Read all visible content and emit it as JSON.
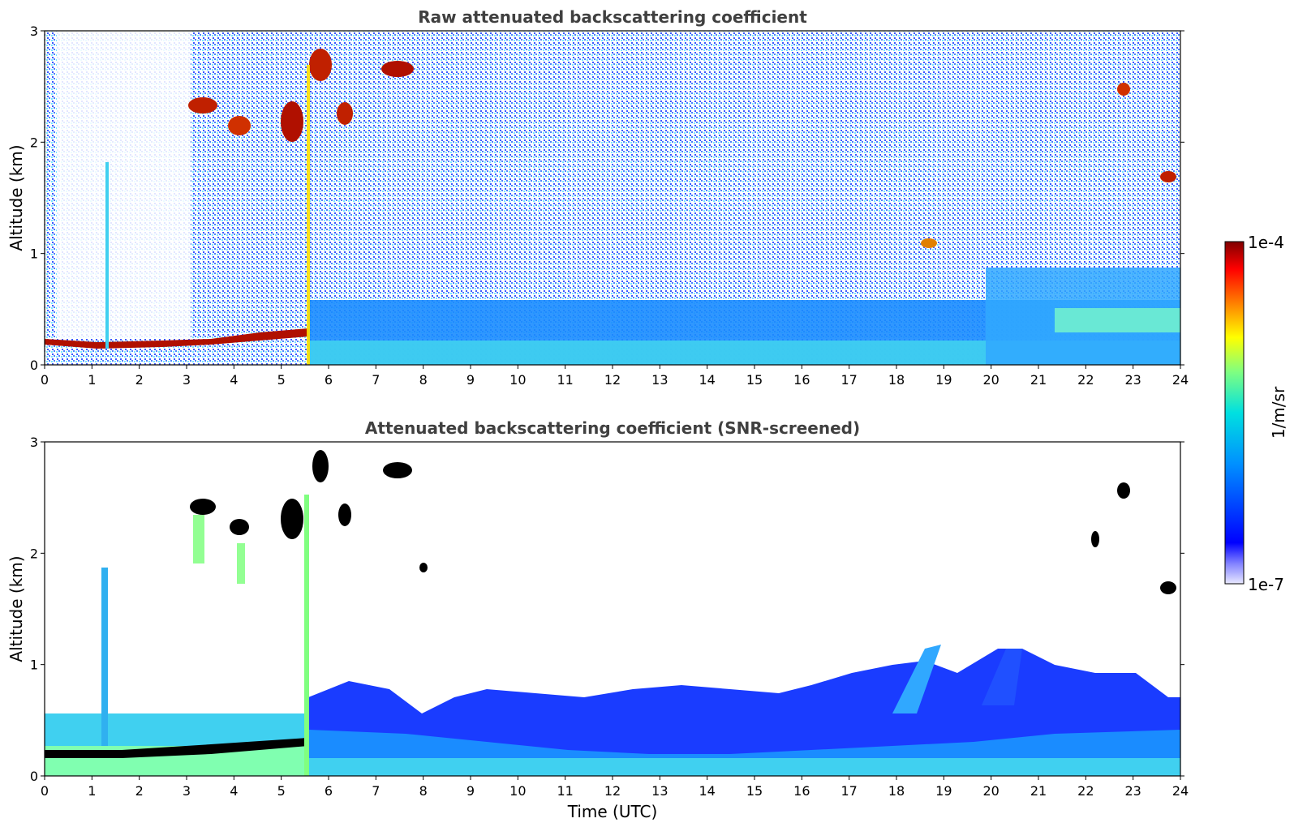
{
  "chart_data": [
    {
      "type": "heatmap",
      "title": "Raw attenuated backscattering coefficient",
      "xlabel": "",
      "ylabel": "Altitude (km)",
      "xlim": [
        0,
        24
      ],
      "ylim": [
        0,
        3
      ],
      "x_ticks": [
        "0",
        "1",
        "2",
        "3",
        "4",
        "5",
        "6",
        "7",
        "8",
        "9",
        "10",
        "11",
        "12",
        "13",
        "14",
        "15",
        "16",
        "17",
        "18",
        "19",
        "20",
        "21",
        "22",
        "23",
        "24"
      ],
      "y_ticks": [
        "0",
        "1",
        "2",
        "3"
      ],
      "features": [
        {
          "label": "boundary layer top (strong)",
          "x": [
            0.0,
            5.4
          ],
          "y_km": [
            0.1,
            0.25
          ],
          "level": "high"
        },
        {
          "label": "aerosol layer",
          "x": [
            5.5,
            24.0
          ],
          "y_km": [
            0.0,
            0.5
          ],
          "level": "medium"
        },
        {
          "label": "elevated aerosol",
          "x": [
            20.0,
            24.0
          ],
          "y_km": [
            0.3,
            0.8
          ],
          "level": "medium"
        },
        {
          "label": "cloud",
          "x": [
            3.0,
            4.5
          ],
          "y_km": [
            2.0,
            2.4
          ],
          "level": "high"
        },
        {
          "label": "cloud",
          "x": [
            5.0,
            6.0
          ],
          "y_km": [
            2.0,
            2.9
          ],
          "level": "high"
        },
        {
          "label": "cloud",
          "x": [
            7.1,
            7.8
          ],
          "y_km": [
            2.6,
            2.8
          ],
          "level": "high"
        },
        {
          "label": "cloud",
          "x": [
            23.0,
            24.0
          ],
          "y_km": [
            1.6,
            2.5
          ],
          "level": "high"
        }
      ]
    },
    {
      "type": "heatmap",
      "title": "Attenuated backscattering coefficient (SNR-screened)",
      "xlabel": "Time (UTC)",
      "ylabel": "Altitude (km)",
      "xlim": [
        0,
        24
      ],
      "ylim": [
        0,
        3
      ],
      "x_ticks": [
        "0",
        "1",
        "2",
        "3",
        "4",
        "5",
        "6",
        "7",
        "8",
        "9",
        "10",
        "11",
        "12",
        "13",
        "14",
        "15",
        "16",
        "17",
        "18",
        "19",
        "20",
        "21",
        "22",
        "23",
        "24"
      ],
      "y_ticks": [
        "0",
        "1",
        "2",
        "3"
      ],
      "features": [
        {
          "label": "boundary layer top (saturated)",
          "x": [
            0.0,
            5.4
          ],
          "y_km": [
            0.1,
            0.25
          ],
          "level": "saturated"
        },
        {
          "label": "aerosol layer",
          "x": [
            5.5,
            24.0
          ],
          "y_km": [
            0.0,
            0.8
          ],
          "level": "medium"
        },
        {
          "label": "elevated aerosol",
          "x": [
            18.0,
            21.0
          ],
          "y_km": [
            0.6,
            1.2
          ],
          "level": "low"
        }
      ]
    }
  ],
  "colorbar": {
    "min_label": "1e-7",
    "max_label": "1e-4",
    "label": "1/m/sr",
    "colormap": "jet-with-white-low",
    "colors": [
      "#ffffff",
      "#0000ff",
      "#00bfff",
      "#00ffbf",
      "#ffff00",
      "#ff8000",
      "#ff0000",
      "#800000"
    ]
  }
}
